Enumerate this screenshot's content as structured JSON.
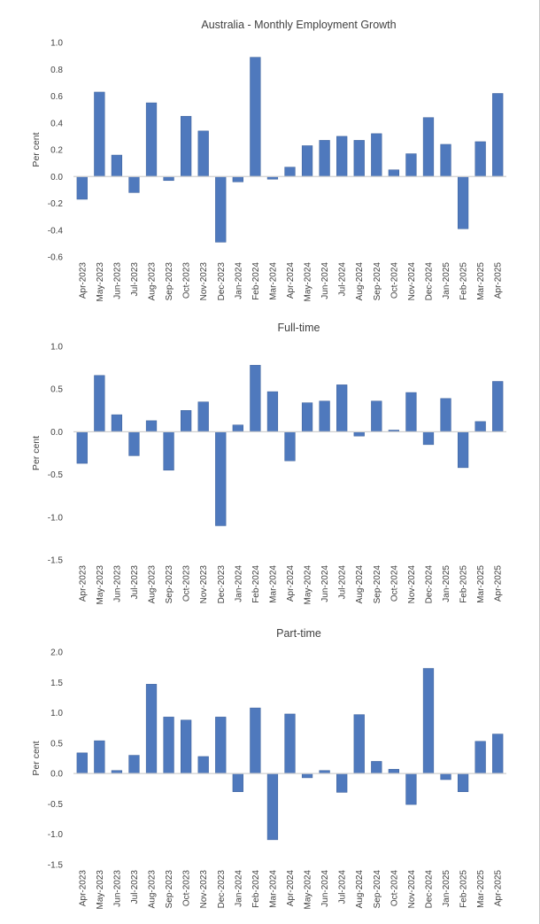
{
  "chart_data": [
    {
      "type": "bar",
      "title": "Australia - Monthly Employment Growth",
      "ylabel": "Per cent",
      "xlabel": "",
      "ylim": [
        -0.6,
        1.0
      ],
      "ystep": 0.2,
      "tick_decimals": 1,
      "grid": false,
      "bar_color": "#4f79bd",
      "bar_edge_color": "#3b5f99",
      "categories": [
        "Apr-2023",
        "May-2023",
        "Jun-2023",
        "Jul-2023",
        "Aug-2023",
        "Sep-2023",
        "Oct-2023",
        "Nov-2023",
        "Dec-2023",
        "Jan-2024",
        "Feb-2024",
        "Mar-2024",
        "Apr-2024",
        "May-2024",
        "Jun-2024",
        "Jul-2024",
        "Aug-2024",
        "Sep-2024",
        "Oct-2024",
        "Nov-2024",
        "Dec-2024",
        "Jan-2025",
        "Feb-2025",
        "Mar-2025",
        "Apr-2025"
      ],
      "values": [
        -0.17,
        0.63,
        0.16,
        -0.12,
        0.55,
        -0.03,
        0.45,
        0.34,
        -0.49,
        -0.04,
        0.89,
        -0.02,
        0.07,
        0.23,
        0.27,
        0.3,
        0.27,
        0.32,
        0.05,
        0.17,
        0.44,
        0.24,
        -0.39,
        0.26,
        0.62
      ]
    },
    {
      "type": "bar",
      "title": "Full-time",
      "ylabel": "Per cent",
      "xlabel": "",
      "ylim": [
        -1.5,
        1.0
      ],
      "ystep": 0.5,
      "tick_decimals": 1,
      "grid": false,
      "bar_color": "#4f79bd",
      "bar_edge_color": "#3b5f99",
      "categories": [
        "Apr-2023",
        "May-2023",
        "Jun-2023",
        "Jul-2023",
        "Aug-2023",
        "Sep-2023",
        "Oct-2023",
        "Nov-2023",
        "Dec-2023",
        "Jan-2024",
        "Feb-2024",
        "Mar-2024",
        "Apr-2024",
        "May-2024",
        "Jun-2024",
        "Jul-2024",
        "Aug-2024",
        "Sep-2024",
        "Oct-2024",
        "Nov-2024",
        "Dec-2024",
        "Jan-2025",
        "Feb-2025",
        "Mar-2025",
        "Apr-2025"
      ],
      "values": [
        -0.37,
        0.66,
        0.2,
        -0.28,
        0.13,
        -0.45,
        0.25,
        0.35,
        -1.1,
        0.08,
        0.78,
        0.47,
        -0.34,
        0.34,
        0.36,
        0.55,
        -0.05,
        0.36,
        0.02,
        0.46,
        -0.15,
        0.39,
        -0.42,
        0.12,
        0.59
      ]
    },
    {
      "type": "bar",
      "title": "Part-time",
      "ylabel": "Per cent",
      "xlabel": "",
      "ylim": [
        -1.5,
        2.0
      ],
      "ystep": 0.5,
      "tick_decimals": 1,
      "grid": false,
      "bar_color": "#4f79bd",
      "bar_edge_color": "#3b5f99",
      "categories": [
        "Apr-2023",
        "May-2023",
        "Jun-2023",
        "Jul-2023",
        "Aug-2023",
        "Sep-2023",
        "Oct-2023",
        "Nov-2023",
        "Dec-2023",
        "Jan-2024",
        "Feb-2024",
        "Mar-2024",
        "Apr-2024",
        "May-2024",
        "Jun-2024",
        "Jul-2024",
        "Aug-2024",
        "Sep-2024",
        "Oct-2024",
        "Nov-2024",
        "Dec-2024",
        "Jan-2025",
        "Feb-2025",
        "Mar-2025",
        "Apr-2025"
      ],
      "values": [
        0.34,
        0.54,
        0.05,
        0.3,
        1.47,
        0.93,
        0.88,
        0.28,
        0.93,
        -0.3,
        1.08,
        -1.09,
        0.98,
        -0.07,
        0.05,
        -0.31,
        0.97,
        0.2,
        0.07,
        -0.51,
        1.73,
        -0.1,
        -0.3,
        0.53,
        0.65
      ]
    }
  ]
}
